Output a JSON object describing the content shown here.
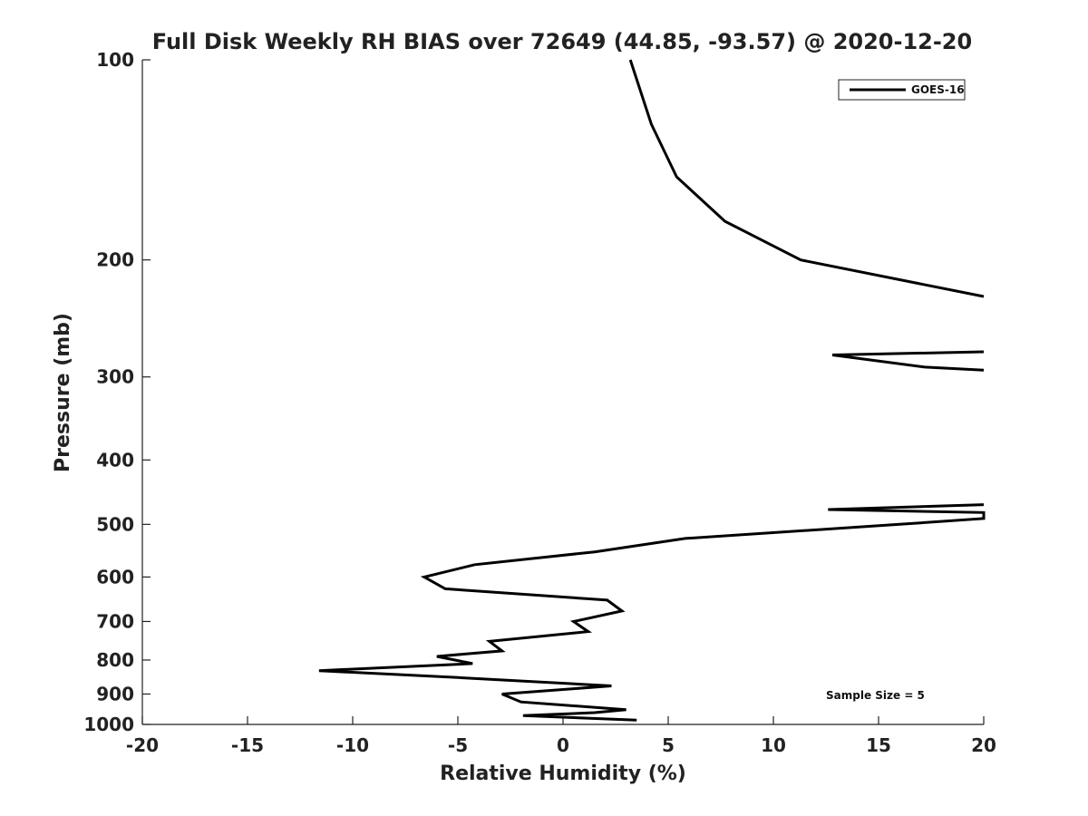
{
  "chart_data": {
    "type": "line",
    "title": "Full Disk Weekly RH BIAS over 72649 (44.85, -93.57) @ 2020-12-20",
    "xlabel": "Relative Humidity (%)",
    "ylabel": "Pressure (mb)",
    "xlim": [
      -20,
      20
    ],
    "ylim": [
      1000,
      100
    ],
    "y_scale": "log",
    "y_reversed": true,
    "grid": false,
    "legend_position": "top-right",
    "x_ticks": [
      "-20",
      "-15",
      "-10",
      "-5",
      "0",
      "5",
      "10",
      "15",
      "20"
    ],
    "y_ticks": [
      "100",
      "200",
      "300",
      "400",
      "500",
      "600",
      "700",
      "800",
      "900",
      "1000"
    ],
    "annotation": "Sample Size = 5",
    "series": [
      {
        "name": "GOES-16",
        "color": "#000000",
        "points": [
          [
            3.2,
            100
          ],
          [
            4.2,
            125
          ],
          [
            5.4,
            150
          ],
          [
            7.7,
            175
          ],
          [
            11.3,
            200
          ],
          [
            20.0,
            227
          ],
          [
            null,
            null
          ],
          [
            20.0,
            275
          ],
          [
            12.8,
            278
          ],
          [
            17.2,
            290
          ],
          [
            20.0,
            293
          ],
          [
            null,
            null
          ],
          [
            20.0,
            467
          ],
          [
            12.6,
            475
          ],
          [
            20.0,
            480
          ],
          [
            20.0,
            490
          ],
          [
            16.0,
            500
          ],
          [
            5.8,
            525
          ],
          [
            1.5,
            550
          ],
          [
            -4.2,
            575
          ],
          [
            -6.6,
            600
          ],
          [
            -5.6,
            625
          ],
          [
            2.1,
            650
          ],
          [
            2.8,
            675
          ],
          [
            0.5,
            700
          ],
          [
            1.2,
            725
          ],
          [
            -3.5,
            750
          ],
          [
            -2.9,
            775
          ],
          [
            -6.0,
            790
          ],
          [
            -4.3,
            810
          ],
          [
            -11.6,
            830
          ],
          [
            -5.0,
            850
          ],
          [
            2.3,
            875
          ],
          [
            -2.9,
            900
          ],
          [
            -2.0,
            925
          ],
          [
            3.0,
            950
          ],
          [
            1.5,
            960
          ],
          [
            -1.9,
            970
          ],
          [
            3.5,
            985
          ]
        ]
      }
    ]
  }
}
